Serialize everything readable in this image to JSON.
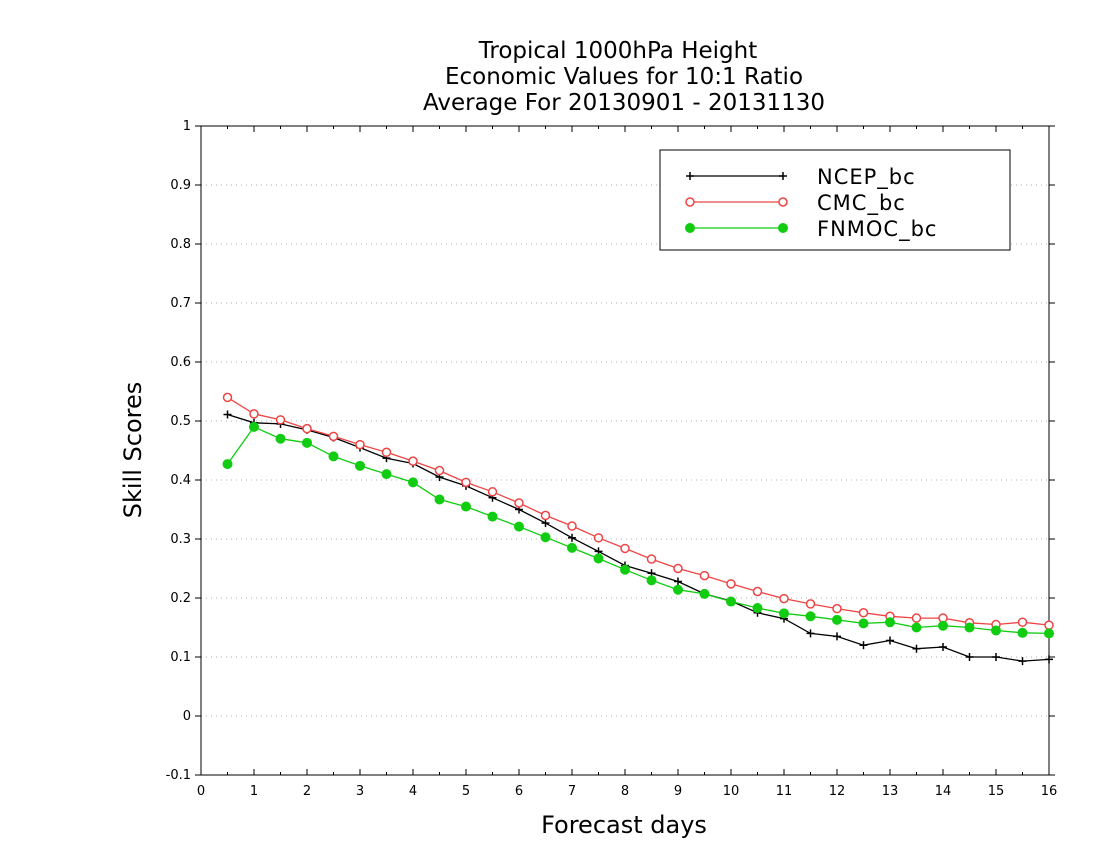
{
  "chart_data": {
    "type": "line",
    "title": [
      "Tropical 1000hPa Height",
      "Economic Values for 10:1 Ratio",
      "Average For 20130901 - 20131130"
    ],
    "xlabel": "Forecast days",
    "ylabel": "Skill Scores",
    "xlim": [
      0,
      16
    ],
    "ylim": [
      -0.1,
      1
    ],
    "xticks": [
      0,
      1,
      2,
      3,
      4,
      5,
      6,
      7,
      8,
      9,
      10,
      11,
      12,
      13,
      14,
      15,
      16
    ],
    "yticks": [
      -0.1,
      0,
      0.1,
      0.2,
      0.3,
      0.4,
      0.5,
      0.6,
      0.7,
      0.8,
      0.9,
      1
    ],
    "ytick_labels": [
      "-0.1",
      "0",
      "0.1",
      "0.2",
      "0.3",
      "0.4",
      "0.5",
      "0.6",
      "0.7",
      "0.8",
      "0.9",
      "1"
    ],
    "grid": "horizontal dotted",
    "legend_position": "top-right",
    "x": [
      0.5,
      1,
      1.5,
      2,
      2.5,
      3,
      3.5,
      4,
      4.5,
      5,
      5.5,
      6,
      6.5,
      7,
      7.5,
      8,
      8.5,
      9,
      9.5,
      10,
      10.5,
      11,
      11.5,
      12,
      12.5,
      13,
      13.5,
      14,
      14.5,
      15,
      15.5,
      16
    ],
    "series": [
      {
        "name": "NCEP_bc",
        "color": "#000000",
        "marker": "plus",
        "values": [
          0.511,
          0.497,
          0.495,
          0.485,
          0.472,
          0.455,
          0.437,
          0.428,
          0.405,
          0.39,
          0.37,
          0.35,
          0.327,
          0.302,
          0.279,
          0.255,
          0.242,
          0.228,
          0.207,
          0.195,
          0.175,
          0.165,
          0.14,
          0.135,
          0.12,
          0.128,
          0.114,
          0.117,
          0.1,
          0.1,
          0.093,
          0.096
        ]
      },
      {
        "name": "CMC_bc",
        "color": "#ee4444",
        "marker": "open-circle",
        "values": [
          0.54,
          0.512,
          0.502,
          0.487,
          0.474,
          0.46,
          0.447,
          0.432,
          0.416,
          0.396,
          0.38,
          0.361,
          0.34,
          0.322,
          0.302,
          0.284,
          0.266,
          0.25,
          0.238,
          0.224,
          0.211,
          0.199,
          0.19,
          0.182,
          0.175,
          0.169,
          0.166,
          0.166,
          0.158,
          0.155,
          0.159,
          0.154
        ]
      },
      {
        "name": "FNMOC_bc",
        "color": "#11cc11",
        "marker": "filled-circle",
        "values": [
          0.427,
          0.49,
          0.47,
          0.463,
          0.44,
          0.424,
          0.41,
          0.396,
          0.367,
          0.355,
          0.338,
          0.321,
          0.303,
          0.285,
          0.267,
          0.248,
          0.23,
          0.214,
          0.207,
          0.194,
          0.183,
          0.174,
          0.169,
          0.163,
          0.157,
          0.159,
          0.15,
          0.153,
          0.15,
          0.145,
          0.141,
          0.14
        ]
      }
    ]
  }
}
